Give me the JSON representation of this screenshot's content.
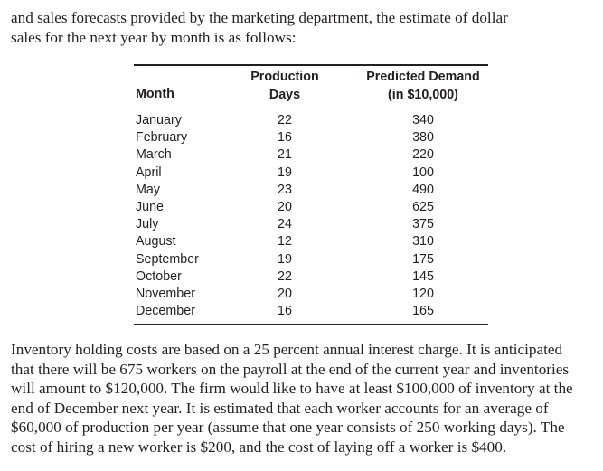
{
  "intro": {
    "lines": [
      "and sales forecasts provided by the marketing department, the estimate of dollar",
      "sales for the next year by month is as follows:"
    ]
  },
  "table": {
    "headers": [
      [
        "Month"
      ],
      [
        "Production",
        "Days"
      ],
      [
        "Predicted Demand",
        "(in $10,000)"
      ]
    ],
    "rows": [
      [
        "January",
        22,
        340
      ],
      [
        "February",
        16,
        380
      ],
      [
        "March",
        21,
        220
      ],
      [
        "April",
        19,
        100
      ],
      [
        "May",
        23,
        490
      ],
      [
        "June",
        20,
        625
      ],
      [
        "July",
        24,
        375
      ],
      [
        "August",
        12,
        310
      ],
      [
        "September",
        19,
        175
      ],
      [
        "October",
        22,
        145
      ],
      [
        "November",
        20,
        120
      ],
      [
        "December",
        16,
        165
      ]
    ]
  },
  "body": {
    "lines": [
      "Inventory holding costs are based on a 25 percent annual interest charge. It is anticipated",
      "that there will be 675 workers on the payroll at the end of the current year and inventories",
      "will amount to $120,000. The firm would like to have at least $100,000 of inventory at the",
      "end of December next year. It is estimated that each worker accounts for an average of",
      "$60,000 of production per year (assume that one year consists of 250 working days). The",
      "cost of hiring a new worker is $200, and the cost of laying off a worker is $400."
    ]
  }
}
